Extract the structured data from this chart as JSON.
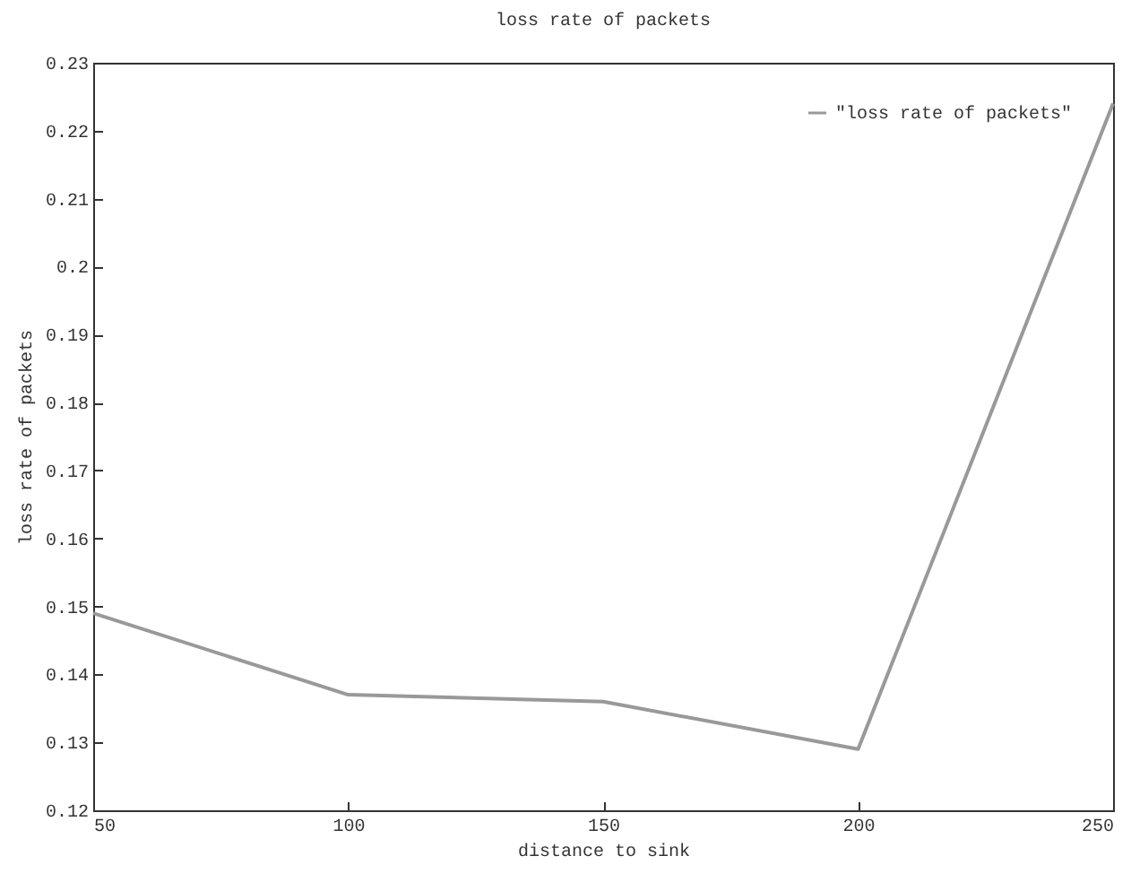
{
  "chart_data": {
    "type": "line",
    "title": "loss rate of packets",
    "xlabel": "distance to sink",
    "ylabel": "loss rate of packets",
    "x": [
      50,
      100,
      150,
      200,
      250
    ],
    "series": [
      {
        "name": "\"loss rate of packets\"",
        "color": "#999999",
        "values": [
          0.149,
          0.137,
          0.136,
          0.129,
          0.224
        ]
      }
    ],
    "xlim": [
      50,
      250
    ],
    "xticks": [
      50,
      100,
      150,
      200,
      250
    ],
    "ylim": [
      0.12,
      0.23
    ],
    "yticks": [
      0.12,
      0.13,
      0.14,
      0.15,
      0.16,
      0.17,
      0.18,
      0.19,
      0.2,
      0.21,
      0.22,
      0.23
    ],
    "grid": false,
    "legend": "top right",
    "marker": "none",
    "line_style": "solid"
  }
}
